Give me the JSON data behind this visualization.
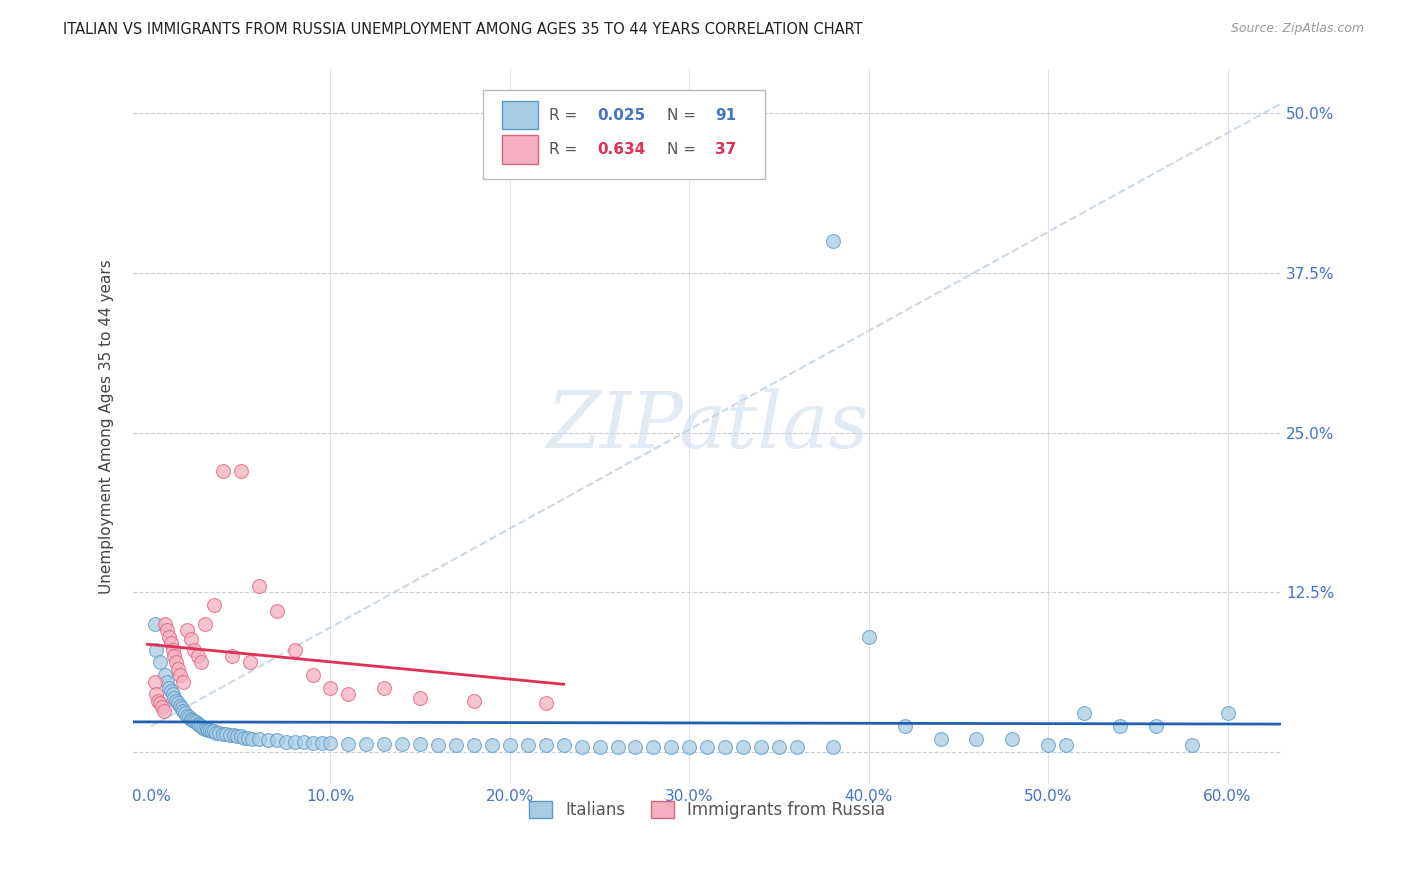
{
  "title": "ITALIAN VS IMMIGRANTS FROM RUSSIA UNEMPLOYMENT AMONG AGES 35 TO 44 YEARS CORRELATION CHART",
  "source": "Source: ZipAtlas.com",
  "ylabel": "Unemployment Among Ages 35 to 44 years",
  "watermark_text": "ZIPatlas",
  "xlim": [
    -0.01,
    0.63
  ],
  "ylim": [
    -0.025,
    0.535
  ],
  "xtick_vals": [
    0.0,
    0.1,
    0.2,
    0.3,
    0.4,
    0.5,
    0.6
  ],
  "xtick_labels": [
    "0.0%",
    "10.0%",
    "20.0%",
    "30.0%",
    "40.0%",
    "50.0%",
    "60.0%"
  ],
  "ytick_vals": [
    0.0,
    0.125,
    0.25,
    0.375,
    0.5
  ],
  "ytick_labels": [
    "",
    "12.5%",
    "25.0%",
    "37.5%",
    "50.0%"
  ],
  "legend_italian_R": "0.025",
  "legend_italian_N": "91",
  "legend_russia_R": "0.634",
  "legend_russia_N": "37",
  "color_italian_fill": "#a8cce4",
  "color_italian_edge": "#5b9ac8",
  "color_russia_fill": "#f4b0c0",
  "color_russia_edge": "#e06080",
  "color_line_italian": "#2060b0",
  "color_line_russia": "#e03055",
  "color_trendline": "#c8d8ec",
  "color_grid": "#c8ccd8",
  "color_tick_label": "#4472C4",
  "color_ylabel": "#444444",
  "color_title": "#222222",
  "color_source": "#999999",
  "color_watermark": "#d0dcee",
  "italian_x": [
    0.002,
    0.003,
    0.005,
    0.008,
    0.009,
    0.01,
    0.011,
    0.012,
    0.013,
    0.014,
    0.015,
    0.016,
    0.017,
    0.018,
    0.019,
    0.02,
    0.021,
    0.022,
    0.023,
    0.024,
    0.025,
    0.026,
    0.027,
    0.028,
    0.029,
    0.03,
    0.031,
    0.032,
    0.033,
    0.034,
    0.035,
    0.036,
    0.038,
    0.04,
    0.042,
    0.044,
    0.046,
    0.048,
    0.05,
    0.052,
    0.054,
    0.056,
    0.06,
    0.065,
    0.07,
    0.075,
    0.08,
    0.085,
    0.09,
    0.095,
    0.1,
    0.11,
    0.12,
    0.13,
    0.14,
    0.15,
    0.16,
    0.17,
    0.18,
    0.19,
    0.2,
    0.21,
    0.22,
    0.23,
    0.24,
    0.25,
    0.26,
    0.27,
    0.28,
    0.29,
    0.3,
    0.31,
    0.32,
    0.33,
    0.34,
    0.35,
    0.36,
    0.38,
    0.4,
    0.42,
    0.44,
    0.46,
    0.48,
    0.5,
    0.52,
    0.54,
    0.56,
    0.58,
    0.6,
    0.38,
    0.51
  ],
  "italian_y": [
    0.1,
    0.08,
    0.07,
    0.06,
    0.055,
    0.05,
    0.048,
    0.045,
    0.042,
    0.04,
    0.038,
    0.036,
    0.034,
    0.032,
    0.03,
    0.028,
    0.027,
    0.026,
    0.025,
    0.024,
    0.023,
    0.022,
    0.021,
    0.02,
    0.019,
    0.018,
    0.018,
    0.017,
    0.017,
    0.016,
    0.016,
    0.015,
    0.015,
    0.014,
    0.014,
    0.013,
    0.013,
    0.012,
    0.012,
    0.011,
    0.011,
    0.01,
    0.01,
    0.009,
    0.009,
    0.008,
    0.008,
    0.008,
    0.007,
    0.007,
    0.007,
    0.006,
    0.006,
    0.006,
    0.006,
    0.006,
    0.005,
    0.005,
    0.005,
    0.005,
    0.005,
    0.005,
    0.005,
    0.005,
    0.004,
    0.004,
    0.004,
    0.004,
    0.004,
    0.004,
    0.004,
    0.004,
    0.004,
    0.004,
    0.004,
    0.004,
    0.004,
    0.004,
    0.09,
    0.02,
    0.01,
    0.01,
    0.01,
    0.005,
    0.03,
    0.02,
    0.02,
    0.005,
    0.03,
    0.4,
    0.005
  ],
  "russia_x": [
    0.002,
    0.003,
    0.004,
    0.005,
    0.006,
    0.007,
    0.008,
    0.009,
    0.01,
    0.011,
    0.012,
    0.013,
    0.014,
    0.015,
    0.016,
    0.018,
    0.02,
    0.022,
    0.024,
    0.026,
    0.028,
    0.03,
    0.035,
    0.04,
    0.045,
    0.05,
    0.055,
    0.06,
    0.07,
    0.08,
    0.09,
    0.1,
    0.11,
    0.13,
    0.15,
    0.18,
    0.22
  ],
  "russia_y": [
    0.055,
    0.045,
    0.04,
    0.038,
    0.035,
    0.032,
    0.1,
    0.095,
    0.09,
    0.085,
    0.08,
    0.075,
    0.07,
    0.065,
    0.06,
    0.055,
    0.095,
    0.088,
    0.08,
    0.075,
    0.07,
    0.1,
    0.115,
    0.22,
    0.075,
    0.22,
    0.07,
    0.13,
    0.11,
    0.08,
    0.06,
    0.05,
    0.045,
    0.05,
    0.042,
    0.04,
    0.038
  ]
}
